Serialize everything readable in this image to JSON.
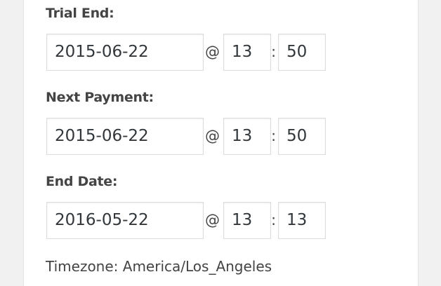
{
  "fields": [
    {
      "label": "Trial End:",
      "date": "2015-06-22",
      "hour": "13",
      "minute": "50"
    },
    {
      "label": "Next Payment:",
      "date": "2015-06-22",
      "hour": "13",
      "minute": "50"
    },
    {
      "label": "End Date:",
      "date": "2016-05-22",
      "hour": "13",
      "minute": "13"
    }
  ],
  "at_symbol": "@",
  "colon": ":",
  "timezone": "Timezone: America/Los_Angeles"
}
